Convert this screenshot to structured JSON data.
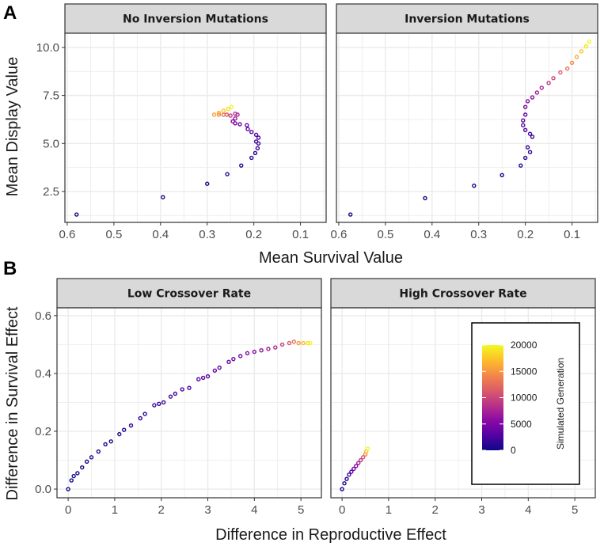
{
  "colors": {
    "plasma": [
      "#0d0887",
      "#5402a3",
      "#8b0aa5",
      "#b93289",
      "#db5c68",
      "#f48849",
      "#febd2a",
      "#f0f921"
    ],
    "strip_bg": "#d9d9d9",
    "grid": "#ebebeb"
  },
  "chart_data": [
    {
      "panel_letter": "A",
      "type": "scatter",
      "xlabel": "Mean Survival Value",
      "ylabel": "Mean Display Value",
      "xlim": [
        0.605,
        0.045
      ],
      "ylim": [
        0.89,
        10.74
      ],
      "xticks": [
        0.6,
        0.5,
        0.4,
        0.3,
        0.2,
        0.1
      ],
      "xtick_labels": [
        "0.6",
        "0.5",
        "0.4",
        "0.3",
        "0.2",
        "0.1"
      ],
      "yticks": [
        2.5,
        5.0,
        7.5,
        10.0
      ],
      "ytick_labels": [
        "2.5",
        "5.0",
        "7.5",
        "10.0"
      ],
      "grid": true,
      "facets": [
        {
          "title": "No Inversion Mutations",
          "points": [
            [
              0.58,
              1.3,
              0
            ],
            [
              0.395,
              2.2,
              200
            ],
            [
              0.3,
              2.9,
              400
            ],
            [
              0.257,
              3.4,
              600
            ],
            [
              0.227,
              3.85,
              800
            ],
            [
              0.205,
              4.25,
              1000
            ],
            [
              0.197,
              4.5,
              1300
            ],
            [
              0.192,
              4.75,
              1600
            ],
            [
              0.19,
              5.0,
              1900
            ],
            [
              0.195,
              5.1,
              2200
            ],
            [
              0.19,
              5.3,
              2500
            ],
            [
              0.195,
              5.45,
              2800
            ],
            [
              0.205,
              5.6,
              3200
            ],
            [
              0.213,
              5.75,
              3600
            ],
            [
              0.215,
              5.95,
              4000
            ],
            [
              0.23,
              6.0,
              4500
            ],
            [
              0.24,
              6.05,
              5000
            ],
            [
              0.245,
              6.15,
              5600
            ],
            [
              0.24,
              6.3,
              6500
            ],
            [
              0.235,
              6.5,
              7500
            ],
            [
              0.24,
              6.55,
              8500
            ],
            [
              0.25,
              6.45,
              9500
            ],
            [
              0.258,
              6.5,
              11000
            ],
            [
              0.265,
              6.5,
              12500
            ],
            [
              0.275,
              6.5,
              14000
            ],
            [
              0.285,
              6.5,
              15500
            ],
            [
              0.275,
              6.6,
              16500
            ],
            [
              0.265,
              6.7,
              17500
            ],
            [
              0.255,
              6.8,
              18500
            ],
            [
              0.248,
              6.9,
              20000
            ]
          ]
        },
        {
          "title": "Inversion Mutations",
          "points": [
            [
              0.575,
              1.3,
              0
            ],
            [
              0.415,
              2.15,
              200
            ],
            [
              0.31,
              2.8,
              400
            ],
            [
              0.25,
              3.35,
              600
            ],
            [
              0.21,
              3.85,
              800
            ],
            [
              0.2,
              4.25,
              1000
            ],
            [
              0.19,
              4.55,
              1300
            ],
            [
              0.195,
              4.8,
              1600
            ],
            [
              0.185,
              5.35,
              1900
            ],
            [
              0.19,
              5.5,
              2200
            ],
            [
              0.2,
              5.7,
              2600
            ],
            [
              0.205,
              5.95,
              3000
            ],
            [
              0.205,
              6.2,
              3500
            ],
            [
              0.2,
              6.5,
              4000
            ],
            [
              0.2,
              6.9,
              4600
            ],
            [
              0.195,
              7.2,
              5200
            ],
            [
              0.185,
              7.4,
              6000
            ],
            [
              0.175,
              7.65,
              7000
            ],
            [
              0.165,
              7.9,
              8000
            ],
            [
              0.15,
              8.15,
              9000
            ],
            [
              0.14,
              8.4,
              10000
            ],
            [
              0.125,
              8.7,
              11500
            ],
            [
              0.11,
              8.9,
              13000
            ],
            [
              0.1,
              9.2,
              14500
            ],
            [
              0.09,
              9.5,
              16000
            ],
            [
              0.08,
              9.8,
              17500
            ],
            [
              0.07,
              10.05,
              19000
            ],
            [
              0.063,
              10.3,
              20000
            ]
          ]
        }
      ]
    },
    {
      "panel_letter": "B",
      "type": "scatter",
      "xlabel": "Difference in Reproductive Effect",
      "ylabel": "Difference in Survival Effect",
      "xlim": [
        -0.24,
        5.44
      ],
      "ylim": [
        -0.03,
        0.627
      ],
      "xticks": [
        0,
        1,
        2,
        3,
        4,
        5
      ],
      "xtick_labels": [
        "0",
        "1",
        "2",
        "3",
        "4",
        "5"
      ],
      "yticks": [
        0.0,
        0.2,
        0.4,
        0.6
      ],
      "ytick_labels": [
        "0.0",
        "0.2",
        "0.4",
        "0.6"
      ],
      "grid": true,
      "facets": [
        {
          "title": "Low Crossover Rate",
          "points": [
            [
              0,
              0,
              0
            ],
            [
              0.07,
              0.03,
              100
            ],
            [
              0.12,
              0.045,
              200
            ],
            [
              0.2,
              0.055,
              300
            ],
            [
              0.3,
              0.075,
              400
            ],
            [
              0.4,
              0.095,
              500
            ],
            [
              0.5,
              0.11,
              600
            ],
            [
              0.65,
              0.13,
              700
            ],
            [
              0.8,
              0.155,
              800
            ],
            [
              0.92,
              0.165,
              900
            ],
            [
              1.1,
              0.19,
              1000
            ],
            [
              1.2,
              0.205,
              1100
            ],
            [
              1.35,
              0.22,
              1200
            ],
            [
              1.55,
              0.245,
              1400
            ],
            [
              1.65,
              0.26,
              1500
            ],
            [
              1.85,
              0.29,
              1700
            ],
            [
              1.95,
              0.295,
              1800
            ],
            [
              2.05,
              0.3,
              1900
            ],
            [
              2.2,
              0.32,
              2100
            ],
            [
              2.3,
              0.33,
              2200
            ],
            [
              2.45,
              0.345,
              2400
            ],
            [
              2.6,
              0.35,
              2600
            ],
            [
              2.8,
              0.38,
              2800
            ],
            [
              2.9,
              0.385,
              3000
            ],
            [
              3.0,
              0.39,
              3200
            ],
            [
              3.15,
              0.41,
              3400
            ],
            [
              3.25,
              0.42,
              3600
            ],
            [
              3.45,
              0.44,
              3900
            ],
            [
              3.55,
              0.45,
              4200
            ],
            [
              3.7,
              0.46,
              4600
            ],
            [
              3.85,
              0.47,
              5000
            ],
            [
              4.0,
              0.475,
              5600
            ],
            [
              4.15,
              0.48,
              6300
            ],
            [
              4.3,
              0.485,
              7000
            ],
            [
              4.45,
              0.49,
              8000
            ],
            [
              4.6,
              0.5,
              9500
            ],
            [
              4.75,
              0.505,
              11000
            ],
            [
              4.85,
              0.51,
              13000
            ],
            [
              4.95,
              0.505,
              15000
            ],
            [
              5.05,
              0.505,
              17000
            ],
            [
              5.15,
              0.505,
              18500
            ],
            [
              5.2,
              0.505,
              20000
            ]
          ]
        },
        {
          "title": "High Crossover Rate",
          "points": [
            [
              0,
              0,
              0
            ],
            [
              0.05,
              0.02,
              500
            ],
            [
              0.1,
              0.035,
              1000
            ],
            [
              0.15,
              0.05,
              2000
            ],
            [
              0.2,
              0.06,
              3000
            ],
            [
              0.25,
              0.07,
              4000
            ],
            [
              0.3,
              0.08,
              5500
            ],
            [
              0.35,
              0.09,
              7000
            ],
            [
              0.4,
              0.1,
              9000
            ],
            [
              0.45,
              0.11,
              11000
            ],
            [
              0.5,
              0.12,
              14000
            ],
            [
              0.52,
              0.13,
              17000
            ],
            [
              0.55,
              0.14,
              20000
            ]
          ]
        }
      ]
    }
  ],
  "legend": {
    "title": "Simulated Generation",
    "range": [
      0,
      20000
    ],
    "labels": [
      "20000",
      "15000",
      "10000",
      "5000",
      "0"
    ],
    "values": [
      20000,
      15000,
      10000,
      5000,
      0
    ]
  }
}
